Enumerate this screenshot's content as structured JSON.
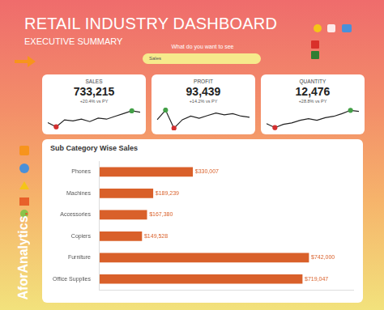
{
  "header": {
    "title": "RETAIL INDUSTRY DASHBOARD",
    "subtitle": "EXECUTIVE SUMMARY",
    "search_prompt": "What do you want to see",
    "search_value": "Sales",
    "brand": "AforAnalytics."
  },
  "chart_data": [
    {
      "type": "line",
      "title": "SALES",
      "annotations": [
        "733,215",
        "+20.4% vs PY"
      ],
      "categories": [
        null,
        null,
        null,
        null,
        null,
        null,
        null,
        null,
        null,
        null,
        null,
        null
      ],
      "values": [
        52,
        40,
        60,
        57,
        62,
        55,
        65,
        62,
        70,
        78,
        86,
        82
      ],
      "color": "#222222",
      "marker": "extremes",
      "ylim": [
        30,
        95
      ],
      "tick_labels": false,
      "grid": false
    },
    {
      "type": "line",
      "title": "PROFIT",
      "annotations": [
        "93,439",
        "+14.2% vs PY"
      ],
      "categories": [
        null,
        null,
        null,
        null,
        null,
        null,
        null,
        null,
        null,
        null,
        null,
        null
      ],
      "values": [
        50,
        82,
        22,
        50,
        62,
        55,
        64,
        72,
        66,
        70,
        62,
        58
      ],
      "color": "#222222",
      "marker": "extremes",
      "ylim": [
        15,
        90
      ],
      "tick_labels": false,
      "grid": false
    },
    {
      "type": "line",
      "title": "QUANTITY",
      "annotations": [
        "12,476",
        "+28.8% vs PY"
      ],
      "categories": [
        null,
        null,
        null,
        null,
        null,
        null,
        null,
        null,
        null,
        null,
        null,
        null
      ],
      "values": [
        40,
        28,
        38,
        42,
        50,
        55,
        50,
        58,
        62,
        70,
        80,
        77
      ],
      "color": "#222222",
      "marker": "extremes",
      "ylim": [
        20,
        88
      ],
      "tick_labels": false,
      "grid": false
    },
    {
      "type": "bar",
      "title": "Sub Category Wise Sales",
      "orientation": "horizontal",
      "categories": [
        "Phones",
        "Machines",
        "Accessories",
        "Copiers",
        "Furniture",
        "Office Supplies"
      ],
      "values": [
        330007,
        189239,
        167380,
        149528,
        742000,
        719047
      ],
      "value_labels": [
        "$330,007",
        "$189,239",
        "$167,380",
        "$149,528",
        "$742,000",
        "$719,047"
      ],
      "color": "#d9602a",
      "xlim": [
        0,
        900000
      ],
      "data_labels": true,
      "tick_labels": "y",
      "grid": false
    }
  ]
}
